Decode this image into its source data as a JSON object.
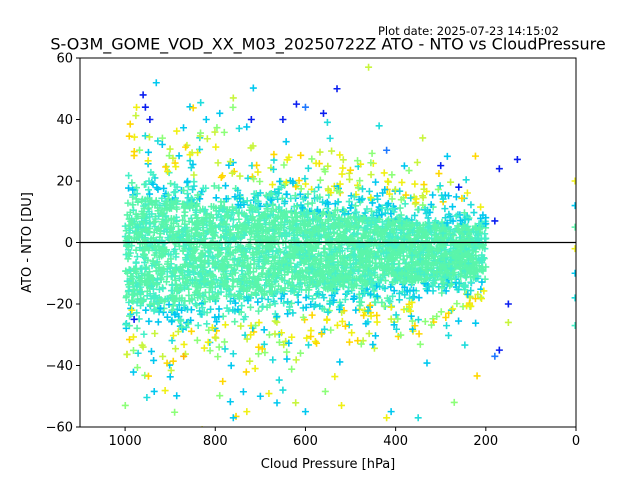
{
  "chart_data": {
    "type": "scatter",
    "title": "S-O3M_GOME_VOD_XX_M03_20250722Z ATO - NTO vs CloudPressure",
    "plot_date": "Plot date: 2025-07-23 14:15:02",
    "xlabel": "Cloud Pressure [hPa]",
    "ylabel": "ATO - NTO [DU]",
    "xlim": [
      1100,
      0
    ],
    "ylim": [
      -60,
      60
    ],
    "x_ticks": [
      1000,
      800,
      600,
      400,
      200,
      0
    ],
    "y_ticks": [
      60,
      40,
      20,
      0,
      -20,
      -40,
      -60
    ],
    "x_tick_labels": [
      "1000",
      "800",
      "600",
      "400",
      "200",
      "0"
    ],
    "y_tick_labels": [
      "60",
      "40",
      "20",
      "0",
      "−20",
      "−40",
      "−60"
    ],
    "reference_line_y": 0,
    "marker": "+",
    "grid": false,
    "colors": [
      "#0a1ef0",
      "#1e78ff",
      "#00c8f0",
      "#1edcdc",
      "#46f0c8",
      "#5af5aa",
      "#8cff78",
      "#c8f53c",
      "#f0f014",
      "#ffd700",
      "#ffb400",
      "#ff6e00"
    ],
    "core_band": {
      "x_range": [
        1000,
        200
      ],
      "y_center": -3,
      "y_half_width_at_1000": 18,
      "y_half_width_at_200": 8
    },
    "outliers": [
      {
        "x": 960,
        "y": 48,
        "color": "#0a1ef0"
      },
      {
        "x": 955,
        "y": 44,
        "color": "#0a1ef0"
      },
      {
        "x": 945,
        "y": 40,
        "color": "#0a1ef0"
      },
      {
        "x": 530,
        "y": 50,
        "color": "#0a1ef0"
      },
      {
        "x": 460,
        "y": 57,
        "color": "#c8f53c"
      },
      {
        "x": 620,
        "y": 45,
        "color": "#0a1ef0"
      },
      {
        "x": 600,
        "y": 44,
        "color": "#1e78ff"
      },
      {
        "x": 760,
        "y": 47,
        "color": "#c8f53c"
      },
      {
        "x": 790,
        "y": 42,
        "color": "#00c8f0"
      },
      {
        "x": 820,
        "y": 40,
        "color": "#00c8f0"
      },
      {
        "x": 720,
        "y": 40,
        "color": "#0a1ef0"
      },
      {
        "x": 650,
        "y": 40,
        "color": "#0a1ef0"
      },
      {
        "x": 560,
        "y": 42,
        "color": "#0a1ef0"
      },
      {
        "x": 130,
        "y": 27,
        "color": "#0a1ef0"
      },
      {
        "x": 170,
        "y": 24,
        "color": "#0a1ef0"
      },
      {
        "x": 300,
        "y": 25,
        "color": "#0a1ef0"
      },
      {
        "x": 340,
        "y": 34,
        "color": "#c8f53c"
      },
      {
        "x": 420,
        "y": 30,
        "color": "#1e78ff"
      },
      {
        "x": 260,
        "y": 18,
        "color": "#0a1ef0"
      },
      {
        "x": 180,
        "y": 7,
        "color": "#0a1ef0"
      },
      {
        "x": 150,
        "y": -20,
        "color": "#0a1ef0"
      },
      {
        "x": 170,
        "y": -35,
        "color": "#0a1ef0"
      },
      {
        "x": 180,
        "y": -37,
        "color": "#1e78ff"
      },
      {
        "x": 150,
        "y": -26,
        "color": "#c8f53c"
      },
      {
        "x": 760,
        "y": -57,
        "color": "#00c8f0"
      },
      {
        "x": 730,
        "y": -55,
        "color": "#f0f014"
      },
      {
        "x": 600,
        "y": -55,
        "color": "#00c8f0"
      },
      {
        "x": 420,
        "y": -57,
        "color": "#f0f014"
      },
      {
        "x": 410,
        "y": -55,
        "color": "#00c8f0"
      },
      {
        "x": 350,
        "y": -57,
        "color": "#1edcdc"
      },
      {
        "x": 700,
        "y": -50,
        "color": "#00c8f0"
      },
      {
        "x": 650,
        "y": -48,
        "color": "#1edcdc"
      },
      {
        "x": 520,
        "y": -53,
        "color": "#f0f014"
      },
      {
        "x": 270,
        "y": -52,
        "color": "#8cff78"
      },
      {
        "x": 960,
        "y": -34,
        "color": "#c8f53c"
      },
      {
        "x": 870,
        "y": -37,
        "color": "#ffb400"
      },
      {
        "x": 980,
        "y": -25,
        "color": "#0a1ef0"
      },
      {
        "x": 985,
        "y": -22,
        "color": "#f0f014"
      },
      {
        "x": 2,
        "y": 20,
        "color": "#f0f014"
      },
      {
        "x": 2,
        "y": 12,
        "color": "#00c8f0"
      },
      {
        "x": 2,
        "y": 5,
        "color": "#5af5aa"
      },
      {
        "x": 2,
        "y": -2,
        "color": "#f0f014"
      },
      {
        "x": 2,
        "y": -10,
        "color": "#00c8f0"
      },
      {
        "x": 2,
        "y": -18,
        "color": "#1edcdc"
      },
      {
        "x": 2,
        "y": -27,
        "color": "#46f0c8"
      }
    ]
  }
}
